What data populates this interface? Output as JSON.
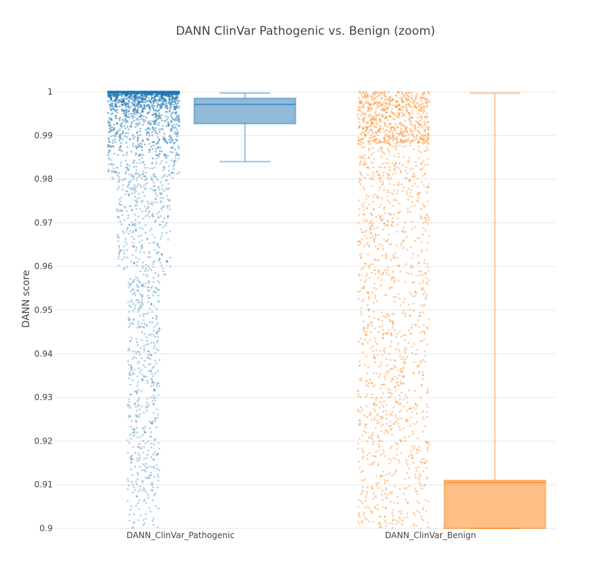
{
  "chart_data": {
    "type": "box",
    "title": "DANN ClinVar Pathogenic vs. Benign (zoom)",
    "xlabel": "",
    "ylabel": "DANN score",
    "ylim": [
      0.9,
      1.0
    ],
    "yticks": [
      0.9,
      0.91,
      0.92,
      0.93,
      0.94,
      0.95,
      0.96,
      0.97,
      0.98,
      0.99,
      1
    ],
    "ytick_labels": [
      "0.9",
      "0.91",
      "0.92",
      "0.93",
      "0.94",
      "0.95",
      "0.96",
      "0.97",
      "0.98",
      "0.99",
      "1"
    ],
    "categories": [
      "DANN_ClinVar_Pathogenic",
      "DANN_ClinVar_Benign"
    ],
    "grid": true,
    "legend": "none",
    "colors": {
      "pathogenic": "#1f77b4",
      "benign": "#ff7f0e",
      "grid": "#e6e6e6",
      "text": "#444444"
    },
    "series": [
      {
        "category": "DANN_ClinVar_Pathogenic",
        "box": {
          "q1": 0.9927,
          "median": 0.9971,
          "q3": 0.9985,
          "whisker_low": 0.984,
          "whisker_high": 0.9997
        },
        "points_visible": true,
        "point_density": "very dense near 1, sparse toward 0.9"
      },
      {
        "category": "DANN_ClinVar_Benign",
        "box": {
          "q1": 0.9,
          "median": 0.9105,
          "q3": 0.911,
          "whisker_low": 0.9,
          "whisker_high": 0.9997
        },
        "points_visible": true,
        "point_density": "dense near 1, broadly spread down to 0.9"
      }
    ]
  }
}
